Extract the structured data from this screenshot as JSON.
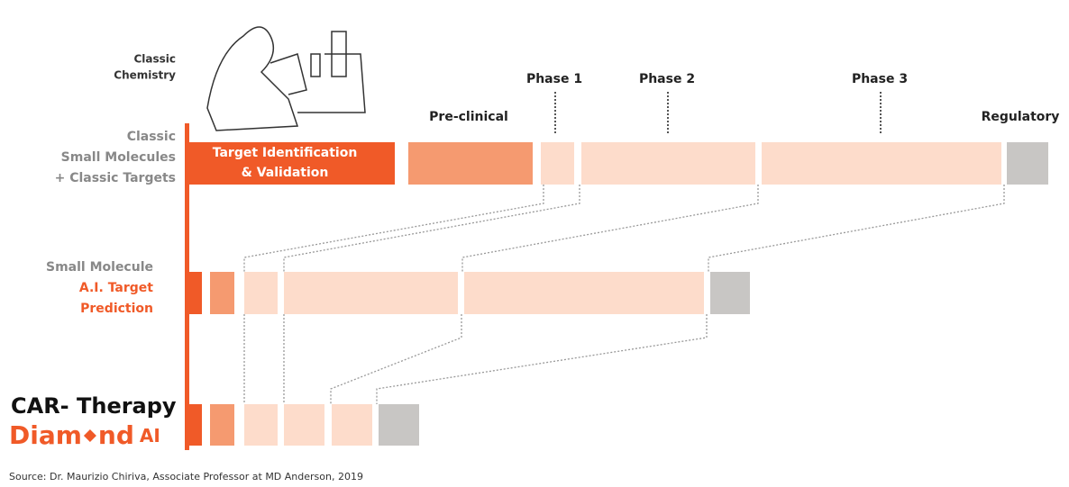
{
  "illustration": {
    "label_lines": [
      "Classic",
      "Chemistry"
    ]
  },
  "stages": {
    "preclinical": "Pre-clinical",
    "phase1": "Phase 1",
    "phase2": "Phase 2",
    "phase3": "Phase 3",
    "regulatory": "Regulatory"
  },
  "rows": [
    {
      "label_lines": [
        "Classic",
        "Small Molecules",
        "+ Classic Targets"
      ],
      "box_lines": [
        "Target Identification",
        "& Validation"
      ]
    },
    {
      "label_lines": [
        "Small Molecule"
      ],
      "highlight_lines": [
        "A.I. Target",
        "Prediction"
      ]
    },
    {
      "title": "CAR- Therapy",
      "brand": {
        "before": "Diam",
        "after": "nd",
        "suffix": "AI"
      }
    }
  ],
  "source": "Source:  Dr. Maurizio Chiriva, Associate Professor at MD Anderson, 2019"
}
